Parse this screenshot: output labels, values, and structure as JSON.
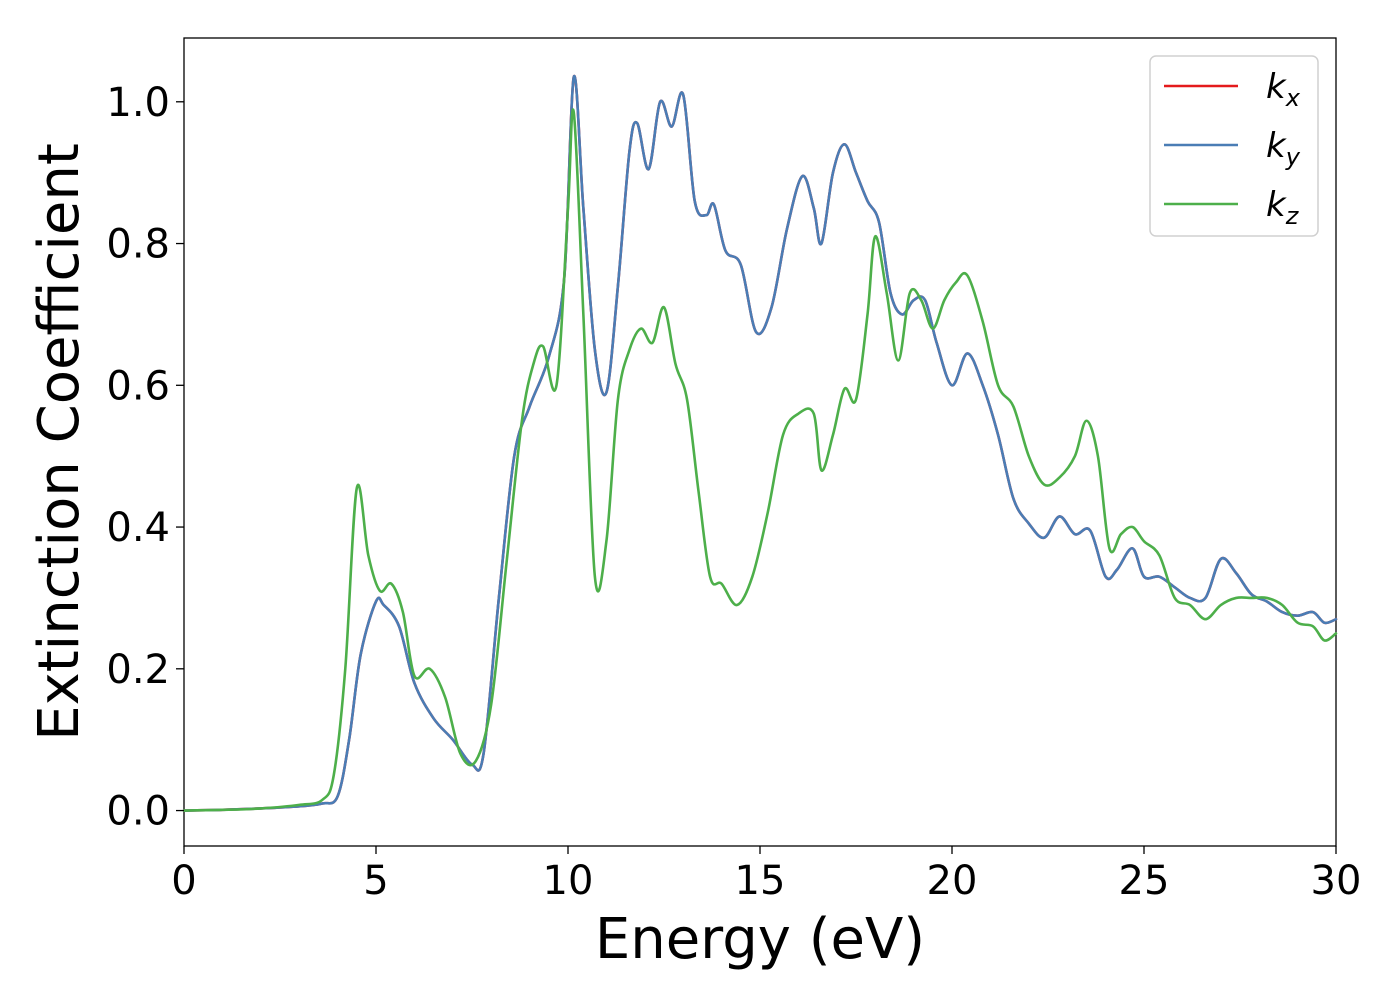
{
  "chart_data": {
    "type": "line",
    "title": "",
    "xlabel": "Energy (eV)",
    "ylabel": "Extinction Coefficient",
    "xlim": [
      0,
      30
    ],
    "ylim": [
      -0.05,
      1.09
    ],
    "xticks": [
      0,
      5,
      10,
      15,
      20,
      25,
      30
    ],
    "yticks": [
      0.0,
      0.2,
      0.4,
      0.6,
      0.8,
      1.0
    ],
    "xtick_labels": [
      "0",
      "5",
      "10",
      "15",
      "20",
      "25",
      "30"
    ],
    "ytick_labels": [
      "0.0",
      "0.2",
      "0.4",
      "0.6",
      "0.8",
      "1.0"
    ],
    "grid": false,
    "legend_position": "top-right",
    "series": [
      {
        "name": "k_x",
        "label_main": "k",
        "label_sub": "x",
        "color": "#e41a1c",
        "x": [
          0,
          1,
          2,
          3,
          3.6,
          4,
          4.3,
          4.6,
          5,
          5.2,
          5.6,
          6,
          6.5,
          7,
          7.5,
          7.8,
          8.2,
          8.6,
          9.0,
          9.5,
          9.9,
          10.15,
          10.4,
          10.7,
          11.0,
          11.3,
          11.6,
          11.8,
          12.1,
          12.4,
          12.7,
          13.0,
          13.3,
          13.6,
          13.8,
          14.1,
          14.5,
          14.9,
          15.3,
          15.7,
          16.1,
          16.4,
          16.6,
          16.9,
          17.2,
          17.5,
          17.8,
          18.1,
          18.4,
          18.7,
          19.0,
          19.3,
          19.6,
          20.0,
          20.4,
          20.8,
          21.2,
          21.6,
          22.0,
          22.4,
          22.8,
          23.2,
          23.6,
          24.0,
          24.3,
          24.7,
          25.0,
          25.4,
          25.8,
          26.2,
          26.6,
          27.0,
          27.4,
          27.8,
          28.2,
          28.6,
          29.0,
          29.4,
          29.7,
          30.0
        ],
        "y": [
          0.0,
          0.001,
          0.003,
          0.006,
          0.01,
          0.02,
          0.1,
          0.22,
          0.295,
          0.29,
          0.26,
          0.18,
          0.13,
          0.1,
          0.065,
          0.08,
          0.3,
          0.5,
          0.57,
          0.64,
          0.75,
          1.035,
          0.85,
          0.65,
          0.59,
          0.74,
          0.93,
          0.97,
          0.905,
          1.0,
          0.965,
          1.01,
          0.86,
          0.84,
          0.855,
          0.79,
          0.77,
          0.675,
          0.71,
          0.82,
          0.895,
          0.85,
          0.8,
          0.9,
          0.94,
          0.9,
          0.86,
          0.83,
          0.73,
          0.7,
          0.72,
          0.72,
          0.66,
          0.6,
          0.645,
          0.6,
          0.53,
          0.44,
          0.405,
          0.385,
          0.415,
          0.39,
          0.395,
          0.33,
          0.34,
          0.37,
          0.33,
          0.33,
          0.315,
          0.3,
          0.3,
          0.355,
          0.335,
          0.305,
          0.295,
          0.28,
          0.275,
          0.28,
          0.265,
          0.27
        ]
      },
      {
        "name": "k_y",
        "label_main": "k",
        "label_sub": "y",
        "color": "#4a7db5",
        "x": [
          0,
          1,
          2,
          3,
          3.6,
          4,
          4.3,
          4.6,
          5,
          5.2,
          5.6,
          6,
          6.5,
          7,
          7.5,
          7.8,
          8.2,
          8.6,
          9.0,
          9.5,
          9.9,
          10.15,
          10.4,
          10.7,
          11.0,
          11.3,
          11.6,
          11.8,
          12.1,
          12.4,
          12.7,
          13.0,
          13.3,
          13.6,
          13.8,
          14.1,
          14.5,
          14.9,
          15.3,
          15.7,
          16.1,
          16.4,
          16.6,
          16.9,
          17.2,
          17.5,
          17.8,
          18.1,
          18.4,
          18.7,
          19.0,
          19.3,
          19.6,
          20.0,
          20.4,
          20.8,
          21.2,
          21.6,
          22.0,
          22.4,
          22.8,
          23.2,
          23.6,
          24.0,
          24.3,
          24.7,
          25.0,
          25.4,
          25.8,
          26.2,
          26.6,
          27.0,
          27.4,
          27.8,
          28.2,
          28.6,
          29.0,
          29.4,
          29.7,
          30.0
        ],
        "y": [
          0.0,
          0.001,
          0.003,
          0.006,
          0.01,
          0.02,
          0.1,
          0.22,
          0.295,
          0.29,
          0.26,
          0.18,
          0.13,
          0.1,
          0.065,
          0.08,
          0.3,
          0.5,
          0.57,
          0.64,
          0.75,
          1.035,
          0.85,
          0.65,
          0.59,
          0.74,
          0.93,
          0.97,
          0.905,
          1.0,
          0.965,
          1.01,
          0.86,
          0.84,
          0.855,
          0.79,
          0.77,
          0.675,
          0.71,
          0.82,
          0.895,
          0.85,
          0.8,
          0.9,
          0.94,
          0.9,
          0.86,
          0.83,
          0.73,
          0.7,
          0.72,
          0.72,
          0.66,
          0.6,
          0.645,
          0.6,
          0.53,
          0.44,
          0.405,
          0.385,
          0.415,
          0.39,
          0.395,
          0.33,
          0.34,
          0.37,
          0.33,
          0.33,
          0.315,
          0.3,
          0.3,
          0.355,
          0.335,
          0.305,
          0.295,
          0.28,
          0.275,
          0.28,
          0.265,
          0.27
        ]
      },
      {
        "name": "k_z",
        "label_main": "k",
        "label_sub": "z",
        "color": "#4daf4a",
        "x": [
          0,
          1,
          2,
          3,
          3.6,
          3.9,
          4.2,
          4.5,
          4.8,
          5.1,
          5.4,
          5.7,
          6.0,
          6.4,
          6.8,
          7.2,
          7.6,
          8.0,
          8.4,
          8.8,
          9.1,
          9.35,
          9.7,
          10.0,
          10.15,
          10.4,
          10.7,
          11.0,
          11.3,
          11.6,
          11.9,
          12.2,
          12.5,
          12.8,
          13.1,
          13.4,
          13.7,
          14.0,
          14.4,
          14.8,
          15.2,
          15.6,
          16.0,
          16.4,
          16.6,
          16.9,
          17.2,
          17.5,
          17.8,
          18.0,
          18.3,
          18.6,
          18.9,
          19.2,
          19.5,
          19.8,
          20.1,
          20.4,
          20.8,
          21.2,
          21.6,
          22.0,
          22.4,
          22.8,
          23.2,
          23.5,
          23.8,
          24.1,
          24.4,
          24.7,
          25.0,
          25.4,
          25.8,
          26.2,
          26.6,
          27.0,
          27.4,
          27.8,
          28.2,
          28.6,
          29.0,
          29.4,
          29.7,
          30.0
        ],
        "y": [
          0.0,
          0.001,
          0.003,
          0.008,
          0.015,
          0.05,
          0.2,
          0.455,
          0.36,
          0.31,
          0.32,
          0.28,
          0.19,
          0.2,
          0.16,
          0.08,
          0.07,
          0.15,
          0.35,
          0.55,
          0.63,
          0.655,
          0.6,
          0.85,
          0.985,
          0.7,
          0.33,
          0.38,
          0.58,
          0.65,
          0.68,
          0.66,
          0.71,
          0.63,
          0.58,
          0.45,
          0.33,
          0.32,
          0.29,
          0.33,
          0.42,
          0.53,
          0.56,
          0.56,
          0.48,
          0.53,
          0.595,
          0.58,
          0.7,
          0.81,
          0.73,
          0.635,
          0.73,
          0.72,
          0.68,
          0.72,
          0.745,
          0.755,
          0.69,
          0.6,
          0.57,
          0.5,
          0.46,
          0.47,
          0.5,
          0.55,
          0.5,
          0.37,
          0.39,
          0.4,
          0.38,
          0.36,
          0.3,
          0.29,
          0.27,
          0.29,
          0.3,
          0.3,
          0.3,
          0.29,
          0.265,
          0.26,
          0.24,
          0.25
        ]
      }
    ]
  }
}
